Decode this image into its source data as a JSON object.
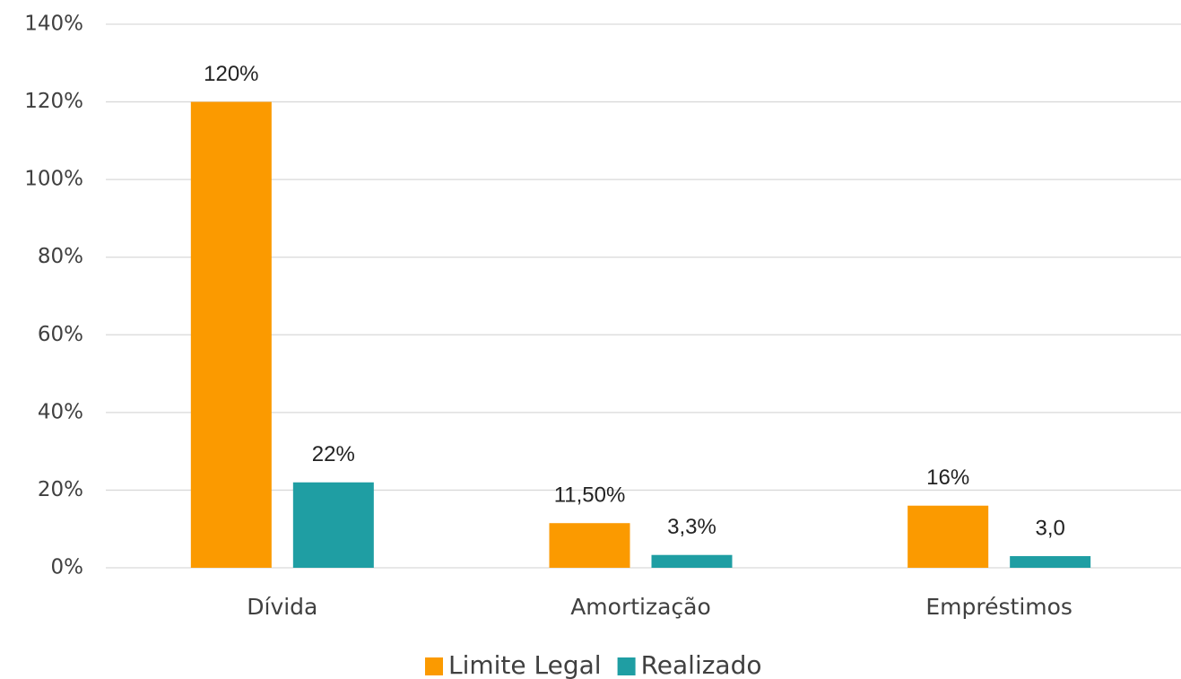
{
  "chart_data": {
    "type": "bar",
    "categories": [
      "Dívida",
      "Amortização",
      "Empréstimos"
    ],
    "series": [
      {
        "name": "Limite Legal",
        "color": "#fb9a00",
        "values": [
          120,
          11.5,
          16
        ],
        "value_labels": [
          "120%",
          "11,50%",
          "16%"
        ]
      },
      {
        "name": "Realizado",
        "color": "#1f9ea3",
        "values": [
          22,
          3.3,
          3
        ],
        "value_labels": [
          "22%",
          "3,3%",
          "3,0"
        ]
      }
    ],
    "ylim": [
      0,
      140
    ],
    "yticks": [
      {
        "value": 0,
        "label": "0%"
      },
      {
        "value": 20,
        "label": "20%"
      },
      {
        "value": 40,
        "label": "40%"
      },
      {
        "value": 60,
        "label": "60%"
      },
      {
        "value": 80,
        "label": "80%"
      },
      {
        "value": 100,
        "label": "100%"
      },
      {
        "value": 120,
        "label": "120%"
      },
      {
        "value": 140,
        "label": "140%"
      }
    ],
    "grid": true,
    "legend": "bottom"
  }
}
